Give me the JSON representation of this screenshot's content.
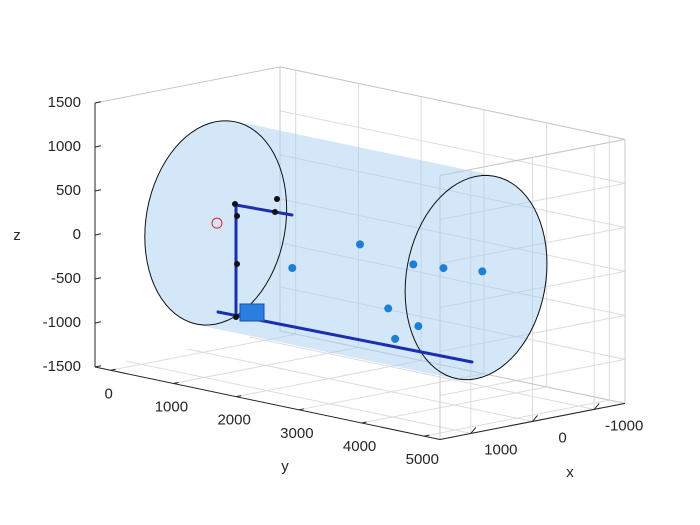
{
  "chart_data": {
    "type": "scatter3d",
    "x_label": "x",
    "y_label": "y",
    "z_label": "z",
    "xlim": [
      -1500,
      1500
    ],
    "ylim": [
      -250,
      5250
    ],
    "zlim": [
      -1500,
      1500
    ],
    "xticks": [
      -1000,
      0,
      1000
    ],
    "yticks": [
      0,
      1000,
      2000,
      3000,
      4000,
      5000
    ],
    "zticks": [
      -1500,
      -1000,
      -500,
      0,
      500,
      1000,
      1500
    ],
    "grid": true,
    "cylinder": {
      "radius": 1150,
      "y_start": 200,
      "y_end": 4350,
      "color": "#a8d0f5"
    },
    "series": [
      {
        "color": "#1f7fd4",
        "x": [
          0,
          0,
          0,
          0,
          0,
          0,
          0,
          0
        ],
        "y": [
          1420,
          2500,
          3350,
          3830,
          4450,
          2950,
          3060,
          3430
        ],
        "z": [
          -330,
          100,
          0,
          30,
          85,
          -560,
          -890,
          -690
        ]
      },
      {
        "color": "#e0202a",
        "x": [
          0
        ],
        "y": [
          220
        ],
        "z": [
          0
        ]
      }
    ]
  }
}
